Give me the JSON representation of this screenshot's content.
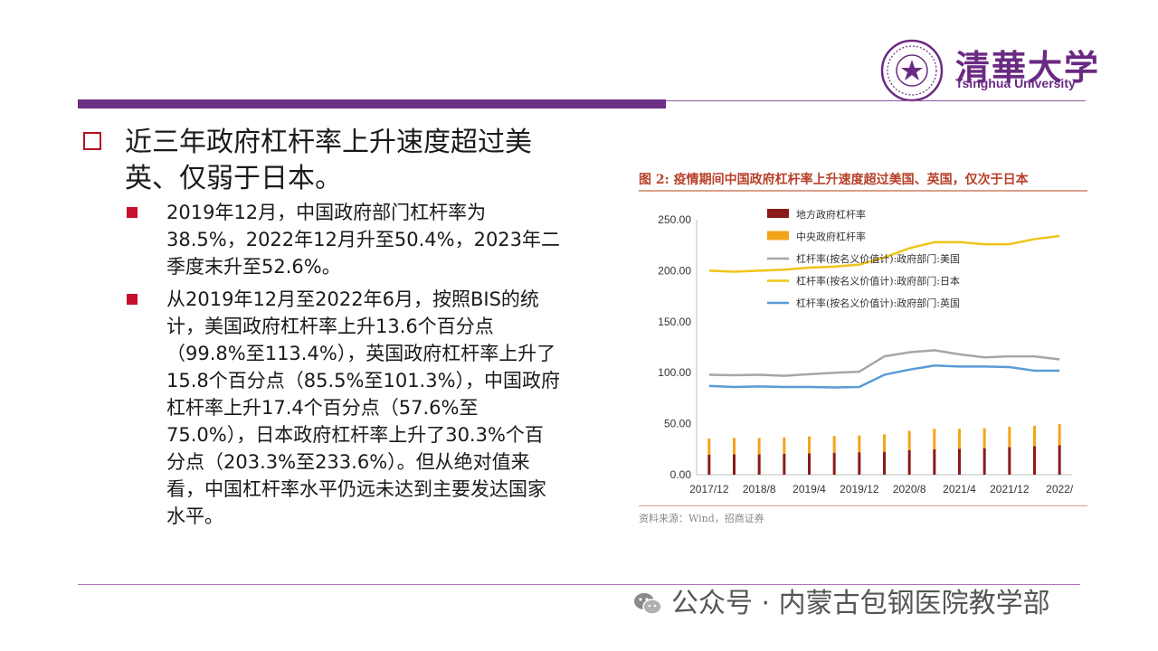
{
  "header": {
    "logo_cn": "清華大学",
    "logo_en": "Tsinghua University"
  },
  "content": {
    "heading": "近三年政府杠杆率上升速度超过美英、仅弱于日本。",
    "bullets": [
      "2019年12月，中国政府部门杠杆率为38.5%，2022年12月升至50.4%，2023年二季度末升至52.6%。",
      "从2019年12月至2022年6月，按照BIS的统计，美国政府杠杆率上升13.6个百分点（99.8%至113.4%），英国政府杠杆率上升了15.8个百分点（85.5%至101.3%），中国政府杠杆率上升17.4个百分点（57.6%至75.0%），日本政府杠杆率上升了30.3%个百分点（203.3%至233.6%）。但从绝对值来看，中国杠杆率水平仍远未达到主要发达国家水平。"
    ]
  },
  "figure": {
    "title": "图 2: 疫情期间中国政府杠杆率上升速度超过美国、英国，仅次于日本",
    "source": "资料来源：Wind，招商证券"
  },
  "watermark": {
    "text": "公众号 · 内蒙古包钢医院教学部"
  },
  "chart_data": {
    "type": "bar",
    "title": "",
    "xlabel": "",
    "ylabel": "",
    "ylim": [
      0,
      250
    ],
    "yticks": [
      "250.00",
      "200.00",
      "150.00",
      "100.00",
      "50.00",
      "0.00"
    ],
    "x_tick_labels": [
      "2017/12",
      "2018/8",
      "2019/4",
      "2019/12",
      "2020/8",
      "2021/4",
      "2021/12",
      "2022/"
    ],
    "x_tick_index": [
      0,
      2,
      4,
      6,
      8,
      10,
      12,
      14
    ],
    "n_points": 15,
    "legend_position": "top-left",
    "series": [
      {
        "name": "地方政府杠杆率",
        "type": "bar",
        "color": "#8b1a1a",
        "values": [
          19.5,
          20,
          20,
          20.5,
          21,
          21.5,
          22,
          22.5,
          24,
          25,
          25.5,
          26,
          27,
          28,
          29
        ]
      },
      {
        "name": "中央政府杠杆率",
        "type": "bar",
        "color": "#f2a51a",
        "values": [
          16,
          16,
          16,
          16,
          16.5,
          16.5,
          16.5,
          17,
          19,
          20,
          19.5,
          19.5,
          20,
          20,
          20.5
        ]
      },
      {
        "name": "杠杆率(按名义价值计):政府部门:美国",
        "type": "line",
        "color": "#a6a6a6",
        "values": [
          98,
          97.5,
          98,
          97,
          98.5,
          100,
          101,
          116,
          120,
          122,
          118,
          115,
          116,
          116,
          113
        ]
      },
      {
        "name": "杠杆率(按名义价值计):政府部门:日本",
        "type": "line",
        "color": "#f0c419",
        "values": [
          200,
          199,
          200,
          201,
          203,
          204,
          206,
          213,
          222,
          228,
          228,
          226,
          226,
          231,
          234
        ]
      },
      {
        "name": "杠杆率(按名义价值计):政府部门:英国",
        "type": "line",
        "color": "#5b9bd5",
        "values": [
          87,
          86,
          86.5,
          86,
          86,
          85.5,
          86,
          98,
          103,
          107,
          106,
          106,
          105.5,
          102,
          102
        ]
      }
    ]
  }
}
